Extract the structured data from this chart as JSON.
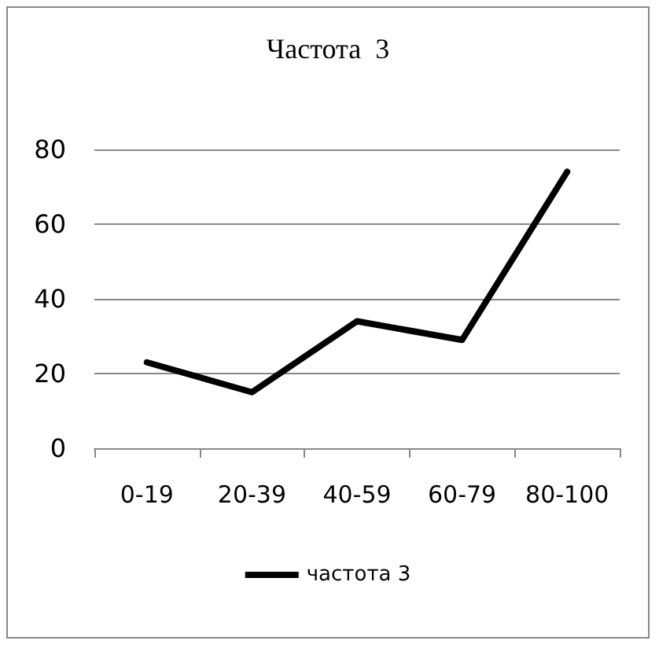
{
  "chart_data": {
    "type": "line",
    "title": "Частота  3",
    "categories": [
      "0-19",
      "20-39",
      "40-59",
      "60-79",
      "80-100"
    ],
    "series": [
      {
        "name": "частота 3",
        "color": "#000000",
        "values": [
          23,
          15,
          34,
          29,
          74
        ]
      }
    ],
    "ylim": [
      0,
      80
    ],
    "yticks": [
      0,
      20,
      40,
      60,
      80
    ],
    "grid": "y",
    "legend": "bottom",
    "marker": "none",
    "line_style": "solid"
  }
}
